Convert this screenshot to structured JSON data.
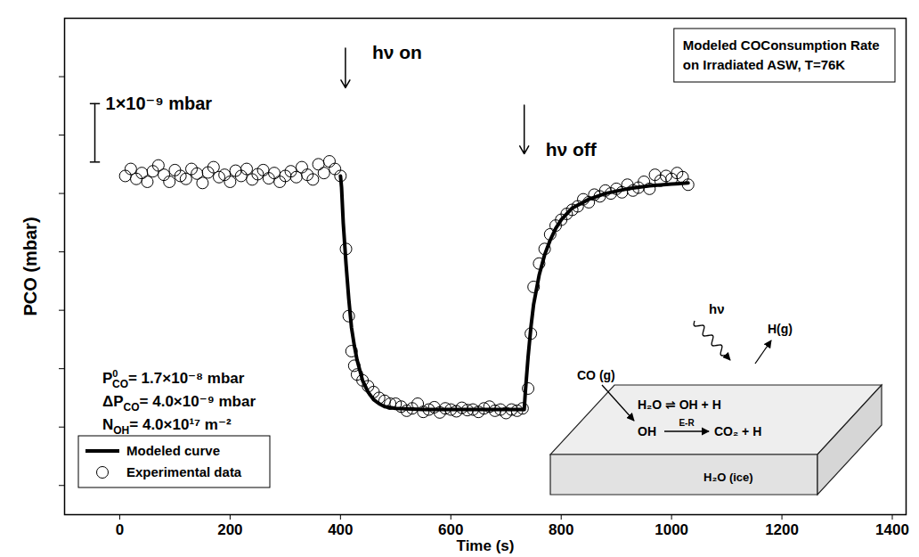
{
  "chart_data": {
    "type": "scatter",
    "title": [
      "Modeled COConsumption Rate",
      "on Irradiated ASW, T=76K"
    ],
    "x_label": "Time (s)",
    "y_label": "PCO (mbar)",
    "xlim": [
      -100,
      1425
    ],
    "xticks": [
      0,
      200,
      400,
      600,
      800,
      1000,
      1200,
      1400
    ],
    "ylim": [
      1.12e-08,
      1.97e-08
    ],
    "yticks": [
      1.17e-08,
      1.27e-08,
      1.37e-08,
      1.47e-08,
      1.57e-08,
      1.67e-08,
      1.77e-08,
      1.87e-08
    ],
    "tick_labels": "x",
    "grid": false,
    "legend": "lower left",
    "series": [
      {
        "name": "Modeled curve",
        "type": "line",
        "color": "#000000",
        "line_style": "solid",
        "x": [
          400,
          402,
          405,
          410,
          415,
          420,
          425,
          430,
          440,
          450,
          460,
          470,
          480,
          500,
          550,
          600,
          733,
          735,
          740,
          745,
          750,
          760,
          770,
          780,
          790,
          800,
          820,
          850,
          880,
          920,
          960,
          1000,
          1030
        ],
        "values": [
          1.7e-08,
          1.68e-08,
          1.62e-08,
          1.55e-08,
          1.49e-08,
          1.44e-08,
          1.41e-08,
          1.385e-08,
          1.35e-08,
          1.33e-08,
          1.317e-08,
          1.31e-08,
          1.305e-08,
          1.302e-08,
          1.3e-08,
          1.3e-08,
          1.3e-08,
          1.33e-08,
          1.39e-08,
          1.44e-08,
          1.48e-08,
          1.53e-08,
          1.565e-08,
          1.59e-08,
          1.61e-08,
          1.625e-08,
          1.645e-08,
          1.66e-08,
          1.67e-08,
          1.678e-08,
          1.683e-08,
          1.686e-08,
          1.688e-08
        ]
      },
      {
        "name": "Experimental data",
        "type": "scatter",
        "color": "#000000",
        "marker": "circle",
        "x": [
          10,
          20,
          30,
          40,
          50,
          60,
          70,
          80,
          90,
          100,
          110,
          120,
          130,
          140,
          150,
          160,
          170,
          180,
          190,
          200,
          210,
          220,
          230,
          240,
          250,
          260,
          270,
          280,
          290,
          300,
          310,
          320,
          330,
          340,
          350,
          360,
          370,
          380,
          390,
          400,
          410,
          415,
          420,
          425,
          430,
          440,
          450,
          460,
          470,
          480,
          490,
          500,
          510,
          520,
          530,
          540,
          550,
          560,
          570,
          580,
          590,
          600,
          610,
          620,
          630,
          640,
          650,
          660,
          670,
          680,
          690,
          700,
          710,
          720,
          730,
          740,
          745,
          750,
          760,
          770,
          780,
          790,
          800,
          810,
          820,
          830,
          840,
          850,
          860,
          870,
          880,
          890,
          900,
          910,
          920,
          930,
          940,
          950,
          960,
          970,
          980,
          990,
          1000,
          1010,
          1020,
          1030
        ],
        "values": [
          1.7e-08,
          1.712e-08,
          1.695e-08,
          1.705e-08,
          1.69e-08,
          1.708e-08,
          1.718e-08,
          1.702e-08,
          1.69e-08,
          1.71e-08,
          1.7e-08,
          1.695e-08,
          1.712e-08,
          1.704e-08,
          1.688e-08,
          1.706e-08,
          1.715e-08,
          1.698e-08,
          1.702e-08,
          1.69e-08,
          1.709e-08,
          1.7e-08,
          1.712e-08,
          1.694e-08,
          1.703e-08,
          1.71e-08,
          1.696e-08,
          1.705e-08,
          1.69e-08,
          1.7e-08,
          1.708e-08,
          1.698e-08,
          1.715e-08,
          1.702e-08,
          1.694e-08,
          1.72e-08,
          1.705e-08,
          1.725e-08,
          1.712e-08,
          1.7e-08,
          1.575e-08,
          1.46e-08,
          1.4e-08,
          1.375e-08,
          1.36e-08,
          1.35e-08,
          1.34e-08,
          1.33e-08,
          1.32e-08,
          1.315e-08,
          1.31e-08,
          1.31e-08,
          1.305e-08,
          1.298e-08,
          1.302e-08,
          1.31e-08,
          1.296e-08,
          1.3e-08,
          1.304e-08,
          1.295e-08,
          1.302e-08,
          1.3e-08,
          1.297e-08,
          1.303e-08,
          1.299e-08,
          1.3e-08,
          1.296e-08,
          1.302e-08,
          1.305e-08,
          1.298e-08,
          1.3e-08,
          1.294e-08,
          1.3e-08,
          1.298e-08,
          1.302e-08,
          1.336e-08,
          1.43e-08,
          1.51e-08,
          1.55e-08,
          1.575e-08,
          1.6e-08,
          1.615e-08,
          1.625e-08,
          1.635e-08,
          1.642e-08,
          1.648e-08,
          1.66e-08,
          1.655e-08,
          1.668e-08,
          1.665e-08,
          1.675e-08,
          1.67e-08,
          1.678e-08,
          1.672e-08,
          1.685e-08,
          1.675e-08,
          1.68e-08,
          1.69e-08,
          1.678e-08,
          1.702e-08,
          1.692e-08,
          1.7e-08,
          1.695e-08,
          1.705e-08,
          1.698e-08,
          1.685e-08
        ]
      }
    ],
    "annotations": [
      {
        "text": "hν on",
        "x": 409
      },
      {
        "text": "hν off",
        "x": 733
      }
    ],
    "scale_bar": {
      "label": "1×10⁻⁹ mbar",
      "value": 1e-09
    },
    "parameters": [
      {
        "symbol": "P",
        "sup": "0",
        "sub": "CO",
        "text": "= 1.7×10⁻⁸ mbar"
      },
      {
        "symbol": "ΔP",
        "sub": "CO",
        "text": "= 4.0×10⁻⁹ mbar"
      },
      {
        "symbol": "N",
        "sub": "OH",
        "text": "= 4.0×10¹⁷ m⁻²"
      }
    ],
    "inset": {
      "hv": "hν",
      "gas_in": "CO (g)",
      "gas_out": "H(g)",
      "equilibrium": "H₂O ⇌ OH + H",
      "reactant": "OH",
      "mechanism": "E-R",
      "product": "CO₂ + H",
      "substrate": "H₂O (ice)"
    }
  }
}
